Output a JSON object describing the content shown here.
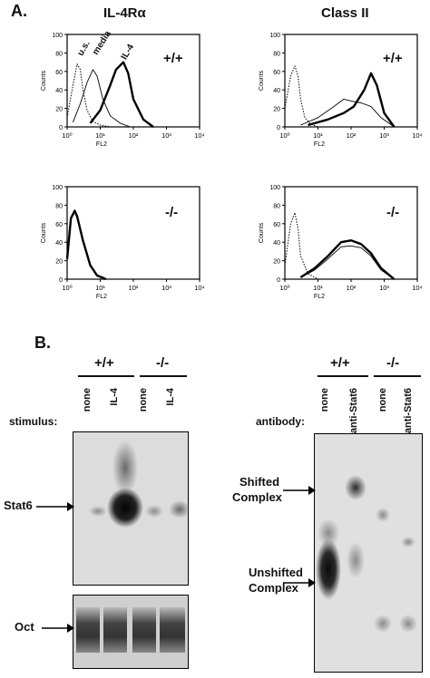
{
  "panel_a": {
    "label": "A.",
    "col_left_title": "IL-4Rα",
    "col_right_title": "Class II",
    "y_axis_label": "Counts",
    "x_axis_label": "FL2",
    "y_ticks": [
      "0",
      "20",
      "40",
      "60",
      "80",
      "100"
    ],
    "x_ticks": [
      "10⁰",
      "10¹",
      "10²",
      "10³",
      "10⁴"
    ],
    "genotype_wt": "+/+",
    "genotype_ko": "-/-",
    "curve_labels": {
      "unstained": "u.s.",
      "media": "media",
      "il4": "IL-4"
    }
  },
  "panel_b": {
    "label": "B.",
    "left_blot": {
      "header_wt": "+/+",
      "header_ko": "-/-",
      "row_title": "stimulus:",
      "lanes": [
        "none",
        "IL-4",
        "none",
        "IL-4"
      ],
      "band_upper": "Stat6",
      "band_lower": "Oct"
    },
    "right_blot": {
      "header_wt": "+/+",
      "header_ko": "-/-",
      "row_title": "antibody:",
      "lanes": [
        "none",
        "anti-Stat6",
        "none",
        "anti-Stat6"
      ],
      "shifted_line1": "Shifted",
      "shifted_line2": "Complex",
      "unshifted_line1": "Unshifted",
      "unshifted_line2": "Complex"
    }
  },
  "chart_data": [
    {
      "type": "line",
      "panel": "IL-4Rα +/+",
      "xlabel": "FL2",
      "ylabel": "Counts",
      "xscale": "log",
      "xlim": [
        1,
        10000
      ],
      "ylim": [
        0,
        100
      ],
      "series": [
        {
          "name": "u.s.",
          "style": "dotted",
          "x": [
            1,
            1.5,
            2,
            2.5,
            3,
            4,
            6,
            10,
            20
          ],
          "y": [
            10,
            45,
            68,
            62,
            40,
            18,
            6,
            2,
            0
          ]
        },
        {
          "name": "media",
          "style": "thin",
          "x": [
            1.5,
            2.5,
            4,
            6,
            8,
            12,
            20,
            40,
            80
          ],
          "y": [
            5,
            25,
            48,
            62,
            55,
            30,
            12,
            4,
            0
          ]
        },
        {
          "name": "IL-4",
          "style": "thick",
          "x": [
            5,
            10,
            20,
            30,
            50,
            70,
            100,
            200,
            400
          ],
          "y": [
            4,
            18,
            45,
            62,
            70,
            58,
            30,
            8,
            0
          ]
        }
      ]
    },
    {
      "type": "line",
      "panel": "Class II +/+",
      "xlabel": "FL2",
      "ylabel": "Counts",
      "xscale": "log",
      "xlim": [
        1,
        10000
      ],
      "ylim": [
        0,
        100
      ],
      "series": [
        {
          "style": "dotted",
          "x": [
            1,
            1.5,
            2,
            2.5,
            3,
            4,
            6,
            10
          ],
          "y": [
            20,
            55,
            66,
            55,
            30,
            10,
            3,
            0
          ]
        },
        {
          "style": "thin",
          "x": [
            3,
            10,
            30,
            60,
            100,
            200,
            400,
            800,
            2000
          ],
          "y": [
            2,
            10,
            22,
            30,
            28,
            26,
            22,
            10,
            0
          ]
        },
        {
          "style": "thick",
          "x": [
            5,
            20,
            60,
            120,
            250,
            400,
            600,
            1000,
            2000
          ],
          "y": [
            2,
            8,
            15,
            22,
            40,
            58,
            45,
            15,
            0
          ]
        }
      ]
    },
    {
      "type": "line",
      "panel": "IL-4Rα -/-",
      "xlabel": "FL2",
      "ylabel": "Counts",
      "xscale": "log",
      "xlim": [
        1,
        10000
      ],
      "ylim": [
        0,
        100
      ],
      "series": [
        {
          "style": "dotted",
          "x": [
            1,
            1.3,
            1.7,
            2,
            3,
            5,
            8,
            15
          ],
          "y": [
            20,
            65,
            72,
            66,
            40,
            15,
            4,
            0
          ]
        },
        {
          "style": "thick",
          "x": [
            1,
            1.3,
            1.7,
            2,
            3,
            5,
            8,
            15
          ],
          "y": [
            22,
            66,
            74,
            68,
            42,
            15,
            4,
            0
          ]
        }
      ]
    },
    {
      "type": "line",
      "panel": "Class II -/-",
      "xlabel": "FL2",
      "ylabel": "Counts",
      "xscale": "log",
      "xlim": [
        1,
        10000
      ],
      "ylim": [
        0,
        100
      ],
      "series": [
        {
          "style": "dotted",
          "x": [
            1,
            1.5,
            2,
            2.5,
            3,
            5,
            10
          ],
          "y": [
            15,
            60,
            72,
            55,
            25,
            6,
            0
          ]
        },
        {
          "style": "thin",
          "x": [
            3,
            8,
            20,
            50,
            100,
            200,
            400,
            800,
            2000
          ],
          "y": [
            2,
            10,
            22,
            35,
            36,
            34,
            25,
            10,
            0
          ]
        },
        {
          "style": "thick",
          "x": [
            3,
            8,
            20,
            50,
            100,
            200,
            400,
            800,
            2000
          ],
          "y": [
            2,
            12,
            25,
            40,
            42,
            38,
            28,
            12,
            0
          ]
        }
      ]
    }
  ]
}
